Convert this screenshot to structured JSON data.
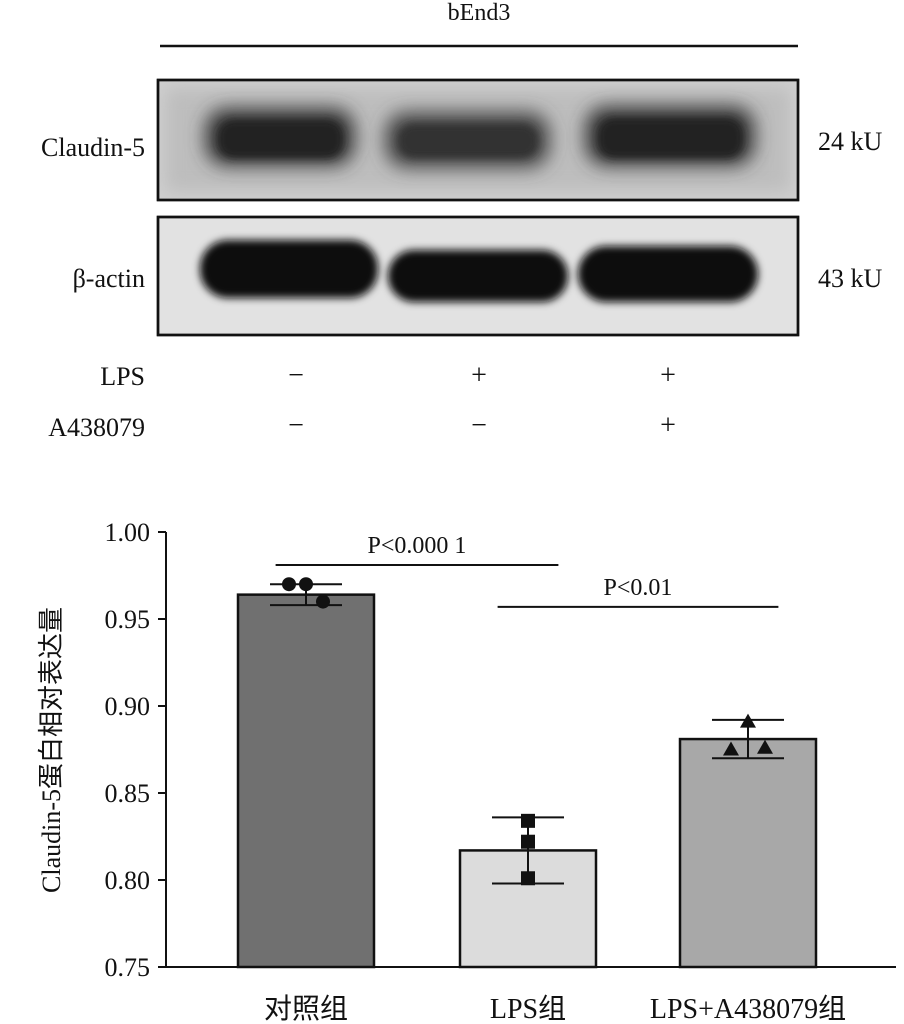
{
  "blot": {
    "cell_line": "bEnd3",
    "rows": [
      {
        "protein": "Claudin-5",
        "size": "24 kU"
      },
      {
        "protein": "β-actin",
        "size": "43 kU"
      }
    ],
    "treatments": [
      {
        "name": "LPS",
        "signs": [
          "−",
          "+",
          "+"
        ]
      },
      {
        "name": "A438079",
        "signs": [
          "−",
          "−",
          "+"
        ]
      }
    ]
  },
  "chart_data": {
    "type": "bar",
    "ylabel": "Claudin-5蛋白相对表达量",
    "xlabel": "",
    "ylim": [
      0.75,
      1.0
    ],
    "yticks": [
      "0.75",
      "0.80",
      "0.85",
      "0.90",
      "0.95",
      "1.00"
    ],
    "categories": [
      "对照组",
      "LPS组",
      "LPS+A438079组"
    ],
    "values": [
      0.964,
      0.817,
      0.881
    ],
    "errors": [
      0.006,
      0.019,
      0.011
    ],
    "points": [
      [
        0.97,
        0.97,
        0.96
      ],
      [
        0.834,
        0.822,
        0.801
      ],
      [
        0.891,
        0.875,
        0.876
      ]
    ],
    "markers": [
      "circle",
      "square",
      "triangle"
    ],
    "bar_colors": [
      "#707070",
      "#dcdcdc",
      "#a8a8a8"
    ],
    "significance": [
      {
        "from": 0,
        "to": 1,
        "label": "P<0.000 1",
        "y": 0.981
      },
      {
        "from": 1,
        "to": 2,
        "label": "P<0.01",
        "y": 0.957
      }
    ]
  }
}
